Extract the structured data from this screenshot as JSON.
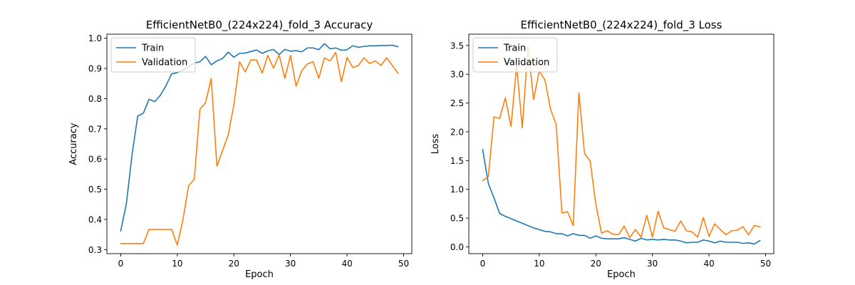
{
  "colors": {
    "train": "#1f77b4",
    "validation": "#ff7f0e"
  },
  "chart_data": [
    {
      "type": "line",
      "title": "EfficientNetB0_(224x224)_fold_3 Accuracy",
      "xlabel": "Epoch",
      "ylabel": "Accuracy",
      "xlim": [
        -2.45,
        51.45
      ],
      "ylim": [
        0.2866,
        1.0134
      ],
      "xticks": [
        0,
        10,
        20,
        30,
        40,
        50
      ],
      "xtick_labels": [
        "0",
        "10",
        "20",
        "30",
        "40",
        "50"
      ],
      "yticks": [
        0.3,
        0.4,
        0.5,
        0.6,
        0.7,
        0.8,
        0.9,
        1.0
      ],
      "ytick_labels": [
        "0.3",
        "0.4",
        "0.5",
        "0.6",
        "0.7",
        "0.8",
        "0.9",
        "1.0"
      ],
      "legend": "upper-left",
      "x": [
        0,
        1,
        2,
        3,
        4,
        5,
        6,
        7,
        8,
        9,
        10,
        11,
        12,
        13,
        14,
        15,
        16,
        17,
        18,
        19,
        20,
        21,
        22,
        23,
        24,
        25,
        26,
        27,
        28,
        29,
        30,
        31,
        32,
        33,
        34,
        35,
        36,
        37,
        38,
        39,
        40,
        41,
        42,
        43,
        44,
        45,
        46,
        47,
        48,
        49
      ],
      "series": [
        {
          "name": "Train",
          "color_key": "train",
          "values": [
            0.362,
            0.452,
            0.615,
            0.742,
            0.752,
            0.798,
            0.79,
            0.811,
            0.843,
            0.882,
            0.886,
            0.895,
            0.905,
            0.918,
            0.922,
            0.94,
            0.912,
            0.925,
            0.933,
            0.954,
            0.937,
            0.95,
            0.951,
            0.956,
            0.961,
            0.95,
            0.958,
            0.963,
            0.946,
            0.963,
            0.957,
            0.959,
            0.955,
            0.968,
            0.968,
            0.962,
            0.982,
            0.965,
            0.968,
            0.96,
            0.962,
            0.975,
            0.97,
            0.973,
            0.975,
            0.975,
            0.976,
            0.976,
            0.977,
            0.972
          ]
        },
        {
          "name": "Validation",
          "color_key": "validation",
          "values": [
            0.32,
            0.32,
            0.32,
            0.32,
            0.32,
            0.367,
            0.367,
            0.367,
            0.367,
            0.367,
            0.315,
            0.4,
            0.512,
            0.533,
            0.765,
            0.787,
            0.867,
            0.576,
            0.628,
            0.68,
            0.78,
            0.922,
            0.889,
            0.928,
            0.928,
            0.885,
            0.943,
            0.901,
            0.945,
            0.867,
            0.943,
            0.841,
            0.893,
            0.915,
            0.922,
            0.867,
            0.935,
            0.925,
            0.953,
            0.856,
            0.937,
            0.903,
            0.91,
            0.935,
            0.916,
            0.925,
            0.91,
            0.935,
            0.91,
            0.884
          ]
        }
      ]
    },
    {
      "type": "line",
      "title": "EfficientNetB0_(224x224)_fold_3 Loss",
      "xlabel": "Epoch",
      "ylabel": "Loss",
      "xlim": [
        -2.45,
        51.45
      ],
      "ylim": [
        -0.118,
        3.696
      ],
      "xticks": [
        0,
        10,
        20,
        30,
        40,
        50
      ],
      "xtick_labels": [
        "0",
        "10",
        "20",
        "30",
        "40",
        "50"
      ],
      "yticks": [
        0.0,
        0.5,
        1.0,
        1.5,
        2.0,
        2.5,
        3.0,
        3.5
      ],
      "ytick_labels": [
        "0.0",
        "0.5",
        "1.0",
        "1.5",
        "2.0",
        "2.5",
        "3.0",
        "3.5"
      ],
      "legend": "upper-left",
      "x": [
        0,
        1,
        2,
        3,
        4,
        5,
        6,
        7,
        8,
        9,
        10,
        11,
        12,
        13,
        14,
        15,
        16,
        17,
        18,
        19,
        20,
        21,
        22,
        23,
        24,
        25,
        26,
        27,
        28,
        29,
        30,
        31,
        32,
        33,
        34,
        35,
        36,
        37,
        38,
        39,
        40,
        41,
        42,
        43,
        44,
        45,
        46,
        47,
        48,
        49
      ],
      "series": [
        {
          "name": "Train",
          "color_key": "train",
          "values": [
            1.69,
            1.1,
            0.85,
            0.58,
            0.53,
            0.49,
            0.45,
            0.41,
            0.37,
            0.33,
            0.3,
            0.27,
            0.26,
            0.23,
            0.23,
            0.19,
            0.23,
            0.2,
            0.2,
            0.15,
            0.19,
            0.15,
            0.14,
            0.14,
            0.14,
            0.16,
            0.13,
            0.1,
            0.15,
            0.12,
            0.13,
            0.12,
            0.13,
            0.12,
            0.12,
            0.1,
            0.07,
            0.08,
            0.08,
            0.12,
            0.1,
            0.07,
            0.1,
            0.08,
            0.08,
            0.08,
            0.06,
            0.07,
            0.05,
            0.11
          ]
        },
        {
          "name": "Validation",
          "color_key": "validation",
          "values": [
            1.15,
            1.22,
            2.26,
            2.23,
            2.59,
            2.09,
            3.15,
            2.07,
            3.48,
            2.56,
            3.06,
            2.9,
            2.39,
            2.12,
            0.59,
            0.61,
            0.37,
            2.68,
            1.62,
            1.49,
            0.74,
            0.24,
            0.28,
            0.22,
            0.21,
            0.36,
            0.16,
            0.3,
            0.17,
            0.55,
            0.17,
            0.62,
            0.33,
            0.3,
            0.27,
            0.45,
            0.28,
            0.26,
            0.17,
            0.51,
            0.18,
            0.4,
            0.3,
            0.21,
            0.28,
            0.29,
            0.35,
            0.21,
            0.37,
            0.35
          ]
        }
      ]
    }
  ]
}
